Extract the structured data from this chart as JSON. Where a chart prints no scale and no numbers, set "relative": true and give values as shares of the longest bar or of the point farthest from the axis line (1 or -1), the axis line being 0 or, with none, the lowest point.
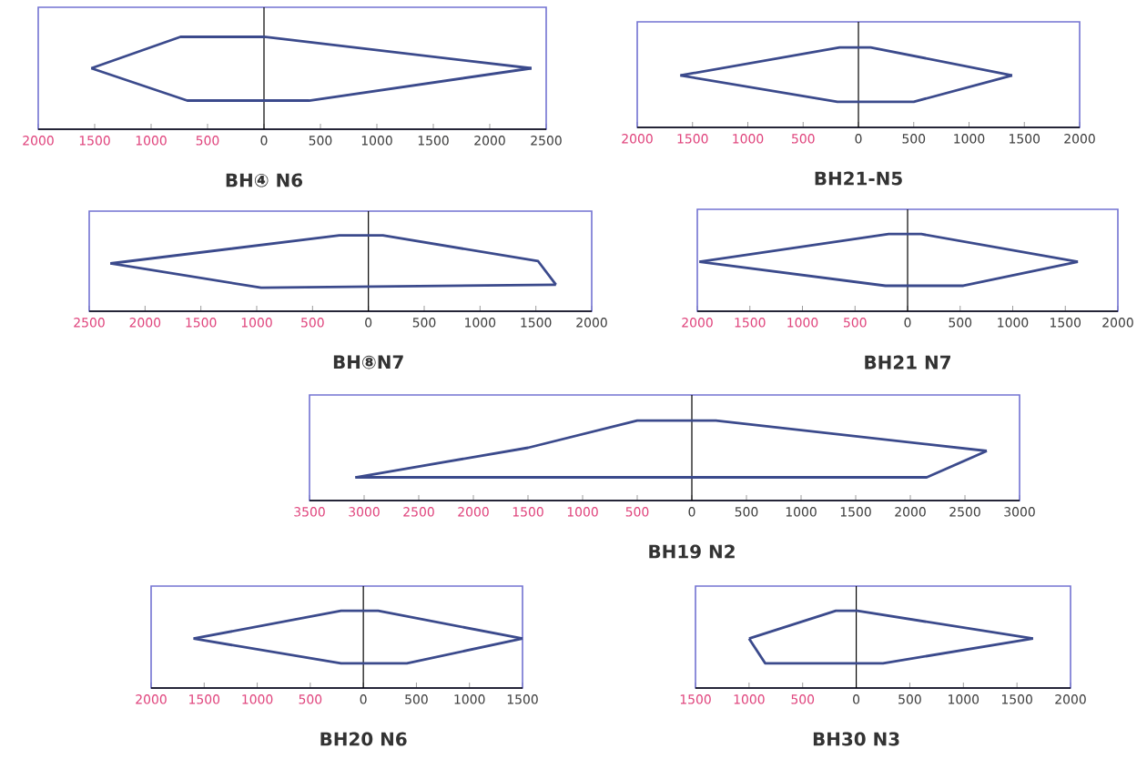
{
  "chart_data": [
    {
      "type": "line",
      "xlabel": "BH④ N6",
      "relative": true,
      "tick_labels": "x",
      "xlim": [
        -2000,
        2500
      ],
      "xticks": [
        {
          "value": -2000,
          "label": "2000"
        },
        {
          "value": -1500,
          "label": "1500"
        },
        {
          "value": -1000,
          "label": "1000"
        },
        {
          "value": -500,
          "label": "500"
        },
        0,
        500,
        1000,
        1500,
        2000,
        2500
      ],
      "ref_lines": [
        {
          "axis": "x",
          "value": 0,
          "color": "#000000"
        }
      ],
      "series": [
        {
          "color": "#3b4a8c",
          "x": [
            -1530,
            -740,
            0,
            2370
          ],
          "values": [
            0.66,
            1,
            1,
            0.66
          ]
        },
        {
          "color": "#3b4a8c",
          "x": [
            -1530,
            -680,
            400,
            2370
          ],
          "values": [
            0.66,
            0.31,
            0.31,
            0.66
          ]
        }
      ]
    },
    {
      "type": "line",
      "xlabel": "BH21-N5",
      "relative": true,
      "tick_labels": "x",
      "xlim": [
        -2000,
        2000
      ],
      "xticks": [
        {
          "value": -2000,
          "label": "2000"
        },
        {
          "value": -1500,
          "label": "1500"
        },
        {
          "value": -1000,
          "label": "1000"
        },
        {
          "value": -500,
          "label": "500"
        },
        0,
        500,
        1000,
        1500,
        2000
      ],
      "ref_lines": [
        {
          "axis": "x",
          "value": 0,
          "color": "#000000"
        }
      ],
      "series": [
        {
          "color": "#3b4a8c",
          "x": [
            -1610,
            -170,
            110,
            1390
          ],
          "values": [
            0.65,
            1,
            1,
            0.65
          ]
        },
        {
          "color": "#3b4a8c",
          "x": [
            -1610,
            -190,
            500,
            1390
          ],
          "values": [
            0.65,
            0.32,
            0.32,
            0.65
          ]
        }
      ]
    },
    {
      "type": "line",
      "xlabel": "BH⑧N7",
      "relative": true,
      "tick_labels": "x",
      "xlim": [
        -2500,
        2000
      ],
      "xticks": [
        {
          "value": -2500,
          "label": "2500"
        },
        {
          "value": -2000,
          "label": "2000"
        },
        {
          "value": -1500,
          "label": "1500"
        },
        {
          "value": -1000,
          "label": "1000"
        },
        {
          "value": -500,
          "label": "500"
        },
        0,
        500,
        1000,
        1500,
        2000
      ],
      "ref_lines": [
        {
          "axis": "x",
          "value": 0,
          "color": "#000000"
        }
      ],
      "series": [
        {
          "color": "#3b4a8c",
          "x": [
            -2310,
            -260,
            130,
            1520,
            1680
          ],
          "values": [
            0.63,
            1,
            1,
            0.66,
            0.35
          ]
        },
        {
          "color": "#3b4a8c",
          "x": [
            -2310,
            -960,
            1680
          ],
          "values": [
            0.63,
            0.31,
            0.35
          ]
        }
      ]
    },
    {
      "type": "line",
      "xlabel": "BH21 N7",
      "relative": true,
      "tick_labels": "x",
      "xlim": [
        -2000,
        2000
      ],
      "xticks": [
        {
          "value": -2000,
          "label": "2000"
        },
        {
          "value": -1500,
          "label": "1500"
        },
        {
          "value": -1000,
          "label": "1000"
        },
        {
          "value": -500,
          "label": "500"
        },
        0,
        500,
        1000,
        1500,
        2000
      ],
      "ref_lines": [
        {
          "axis": "x",
          "value": 0,
          "color": "#000000"
        }
      ],
      "series": [
        {
          "color": "#3b4a8c",
          "x": [
            -1980,
            -180,
            130,
            1620
          ],
          "values": [
            0.64,
            1,
            1,
            0.64
          ]
        },
        {
          "color": "#3b4a8c",
          "x": [
            -1980,
            -210,
            530,
            1620
          ],
          "values": [
            0.64,
            0.33,
            0.33,
            0.64
          ]
        }
      ]
    },
    {
      "type": "line",
      "xlabel": "BH19 N2",
      "relative": true,
      "tick_labels": "x",
      "xlim": [
        -3500,
        3000
      ],
      "xticks": [
        {
          "value": -3500,
          "label": "3500"
        },
        {
          "value": -3000,
          "label": "3000"
        },
        {
          "value": -2500,
          "label": "2500"
        },
        {
          "value": -2000,
          "label": "2000"
        },
        {
          "value": -1500,
          "label": "1500"
        },
        {
          "value": -1000,
          "label": "1000"
        },
        {
          "value": -500,
          "label": "500"
        },
        0,
        500,
        1000,
        1500,
        2000,
        2500,
        3000
      ],
      "ref_lines": [
        {
          "axis": "x",
          "value": 0,
          "color": "#000000"
        }
      ],
      "series": [
        {
          "color": "#3b4a8c",
          "x": [
            -3080,
            -1500,
            -500,
            220,
            2700
          ],
          "values": [
            0.29,
            0.66,
            1,
            1,
            0.62
          ]
        },
        {
          "color": "#3b4a8c",
          "x": [
            -3080,
            2150,
            2700
          ],
          "values": [
            0.29,
            0.29,
            0.62
          ]
        }
      ]
    },
    {
      "type": "line",
      "xlabel": "BH20 N6",
      "relative": true,
      "tick_labels": "x",
      "xlim": [
        -2000,
        1500
      ],
      "xticks": [
        {
          "value": -2000,
          "label": "2000"
        },
        {
          "value": -1500,
          "label": "1500"
        },
        {
          "value": -1000,
          "label": "1000"
        },
        {
          "value": -500,
          "label": "500"
        },
        0,
        500,
        1000,
        1500
      ],
      "ref_lines": [
        {
          "axis": "x",
          "value": 0,
          "color": "#000000"
        }
      ],
      "series": [
        {
          "color": "#3b4a8c",
          "x": [
            -1600,
            -210,
            140,
            1500
          ],
          "values": [
            0.64,
            1,
            1,
            0.64
          ]
        },
        {
          "color": "#3b4a8c",
          "x": [
            -1600,
            -210,
            410,
            1500
          ],
          "values": [
            0.64,
            0.32,
            0.32,
            0.64
          ]
        }
      ]
    },
    {
      "type": "line",
      "xlabel": "BH30 N3",
      "relative": true,
      "tick_labels": "x",
      "xlim": [
        -1500,
        2000
      ],
      "xticks": [
        {
          "value": -1500,
          "label": "1500"
        },
        {
          "value": -1000,
          "label": "1000"
        },
        {
          "value": -500,
          "label": "500"
        },
        0,
        500,
        1000,
        1500,
        2000
      ],
      "ref_lines": [
        {
          "axis": "x",
          "value": 0,
          "color": "#000000"
        }
      ],
      "series": [
        {
          "color": "#3b4a8c",
          "x": [
            -1000,
            -190,
            10,
            1650
          ],
          "values": [
            0.64,
            1,
            1,
            0.64
          ]
        },
        {
          "color": "#3b4a8c",
          "x": [
            -1000,
            -850,
            250,
            1650
          ],
          "values": [
            0.64,
            0.32,
            0.32,
            0.64
          ]
        }
      ]
    }
  ]
}
